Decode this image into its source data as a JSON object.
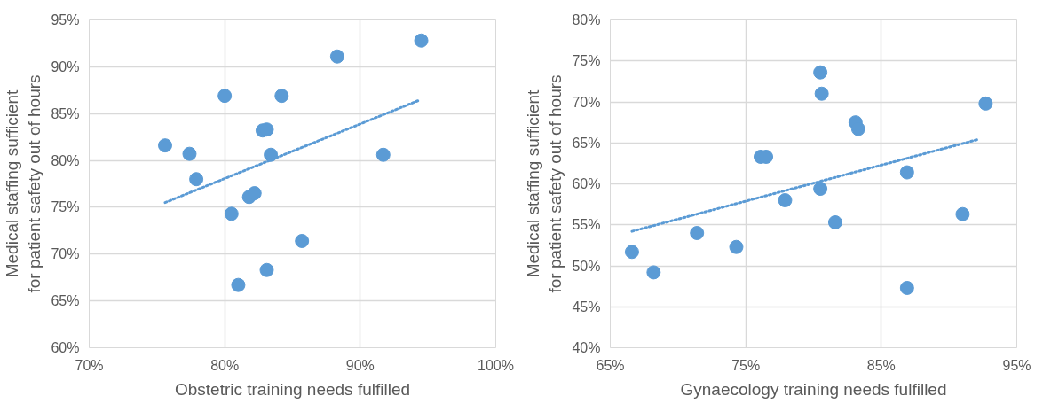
{
  "chart_data": [
    {
      "type": "scatter",
      "xlabel": "Obstetric training needs fulfilled",
      "ylabel": "Medical staffing sufficient for patient safety out of hours",
      "grid": true,
      "xlim": [
        70,
        100
      ],
      "xticks": [
        {
          "value": 70,
          "label": "70%"
        },
        {
          "value": 80,
          "label": "80%"
        },
        {
          "value": 90,
          "label": "90%"
        },
        {
          "value": 100,
          "label": "100%"
        }
      ],
      "ylim": [
        60,
        95
      ],
      "yticks": [
        {
          "value": 60,
          "label": "60%"
        },
        {
          "value": 65,
          "label": "65%"
        },
        {
          "value": 70,
          "label": "70%"
        },
        {
          "value": 75,
          "label": "75%"
        },
        {
          "value": 80,
          "label": "80%"
        },
        {
          "value": 85,
          "label": "85%"
        },
        {
          "value": 90,
          "label": "90%"
        },
        {
          "value": 95,
          "label": "95%"
        }
      ],
      "series": [
        {
          "marker": "circle",
          "color": "#5b9bd5",
          "x": [
            75.6,
            77.4,
            77.9,
            80.0,
            80.5,
            81.0,
            81.8,
            82.2,
            82.8,
            83.1,
            83.1,
            83.4,
            84.2,
            85.7,
            88.3,
            91.7,
            94.5
          ],
          "values": [
            81.6,
            80.7,
            78.0,
            86.9,
            74.3,
            66.7,
            76.1,
            76.5,
            83.2,
            83.3,
            68.3,
            80.6,
            86.9,
            71.4,
            91.1,
            80.6,
            92.8
          ]
        },
        {
          "type": "line",
          "line_style": "dotted",
          "color": "#5b9bd5",
          "x": [
            75.6,
            94.3
          ],
          "values": [
            75.5,
            86.4
          ]
        }
      ]
    },
    {
      "type": "scatter",
      "xlabel": "Gynaecology training needs fulfilled",
      "ylabel": "Medical staffing sufficient for patient safety out of hours",
      "grid": true,
      "xlim": [
        65,
        95
      ],
      "xticks": [
        {
          "value": 65,
          "label": "65%"
        },
        {
          "value": 75,
          "label": "75%"
        },
        {
          "value": 85,
          "label": "85%"
        },
        {
          "value": 95,
          "label": "95%"
        }
      ],
      "ylim": [
        40,
        80
      ],
      "yticks": [
        {
          "value": 40,
          "label": "40%"
        },
        {
          "value": 45,
          "label": "45%"
        },
        {
          "value": 50,
          "label": "50%"
        },
        {
          "value": 55,
          "label": "55%"
        },
        {
          "value": 60,
          "label": "60%"
        },
        {
          "value": 65,
          "label": "65%"
        },
        {
          "value": 70,
          "label": "70%"
        },
        {
          "value": 75,
          "label": "75%"
        },
        {
          "value": 80,
          "label": "80%"
        }
      ],
      "series": [
        {
          "marker": "circle",
          "color": "#5b9bd5",
          "x": [
            66.6,
            68.2,
            71.4,
            74.3,
            76.1,
            76.5,
            77.9,
            80.5,
            80.6,
            80.5,
            81.6,
            83.1,
            83.3,
            86.9,
            86.9,
            91.0,
            92.7
          ],
          "values": [
            51.7,
            49.2,
            54.0,
            52.3,
            63.3,
            63.3,
            58.0,
            73.6,
            71.0,
            59.4,
            55.3,
            67.5,
            66.7,
            61.4,
            47.3,
            56.3,
            69.8
          ]
        },
        {
          "type": "line",
          "line_style": "dotted",
          "color": "#5b9bd5",
          "x": [
            66.6,
            92.1
          ],
          "values": [
            54.2,
            65.4
          ]
        }
      ]
    }
  ]
}
